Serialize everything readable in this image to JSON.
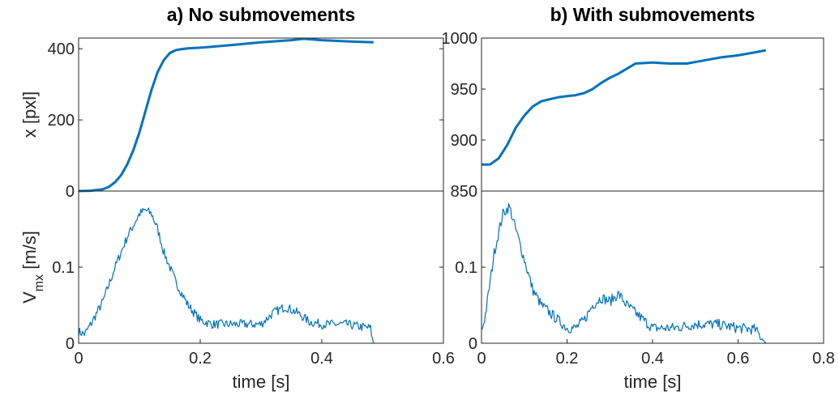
{
  "chart_data": [
    {
      "type": "line",
      "title": "a) No submovements",
      "xlabel": "",
      "ylabel": "x [pxl]",
      "xlim": [
        0,
        0.6
      ],
      "ylim": [
        0,
        430
      ],
      "xticks": [],
      "yticks": [
        0,
        200,
        400
      ],
      "ytick_labels": [
        "0",
        "200",
        "400"
      ],
      "color": "#0072BD",
      "series": [
        {
          "x": [
            0,
            0.02,
            0.04,
            0.05,
            0.06,
            0.07,
            0.08,
            0.09,
            0.1,
            0.11,
            0.12,
            0.13,
            0.14,
            0.15,
            0.16,
            0.17,
            0.18,
            0.2,
            0.25,
            0.3,
            0.35,
            0.37,
            0.4,
            0.45,
            0.485
          ],
          "y": [
            0,
            1,
            5,
            12,
            25,
            45,
            75,
            115,
            165,
            225,
            285,
            335,
            368,
            388,
            396,
            399,
            401,
            403,
            410,
            418,
            424,
            428,
            424,
            420,
            418
          ]
        }
      ]
    },
    {
      "type": "line",
      "title": "b) With submovements",
      "xlabel": "",
      "ylabel": "",
      "xlim": [
        0,
        0.8
      ],
      "ylim": [
        850,
        1000
      ],
      "xticks": [],
      "yticks": [
        850,
        900,
        950,
        1000
      ],
      "ytick_labels": [
        "850",
        "900",
        "950",
        "1000"
      ],
      "color": "#0072BD",
      "series": [
        {
          "x": [
            0,
            0.02,
            0.04,
            0.06,
            0.08,
            0.1,
            0.12,
            0.14,
            0.16,
            0.18,
            0.2,
            0.22,
            0.24,
            0.26,
            0.28,
            0.3,
            0.32,
            0.34,
            0.36,
            0.4,
            0.44,
            0.48,
            0.52,
            0.56,
            0.6,
            0.64,
            0.665
          ],
          "y": [
            876,
            876,
            882,
            895,
            912,
            924,
            933,
            938,
            940,
            942,
            943,
            944,
            946,
            950,
            956,
            961,
            965,
            970,
            975,
            976,
            975,
            975,
            978,
            981,
            983,
            986,
            988
          ]
        }
      ]
    },
    {
      "type": "line",
      "title": "",
      "xlabel": "time [s]",
      "ylabel": "V",
      "ylabel_sub": "mx",
      "ylabel_unit": " [m/s]",
      "xlim": [
        0,
        0.6
      ],
      "ylim": [
        0,
        0.2
      ],
      "xticks": [
        0,
        0.2,
        0.4,
        0.6
      ],
      "xtick_labels": [
        "0",
        "0.2",
        "0.4",
        "0.6"
      ],
      "yticks": [
        0,
        0.1
      ],
      "ytick_labels": [
        "0",
        "0.1"
      ],
      "color": "#0072BD",
      "series": [
        {
          "x": [
            0,
            0.01,
            0.02,
            0.04,
            0.06,
            0.08,
            0.1,
            0.11,
            0.12,
            0.13,
            0.14,
            0.16,
            0.18,
            0.2,
            0.22,
            0.25,
            0.28,
            0.3,
            0.32,
            0.34,
            0.36,
            0.38,
            0.4,
            0.42,
            0.44,
            0.46,
            0.48,
            0.485
          ],
          "y": [
            0.015,
            0.012,
            0.025,
            0.055,
            0.1,
            0.14,
            0.17,
            0.175,
            0.17,
            0.15,
            0.12,
            0.08,
            0.05,
            0.03,
            0.025,
            0.025,
            0.025,
            0.025,
            0.04,
            0.048,
            0.04,
            0.028,
            0.025,
            0.025,
            0.025,
            0.022,
            0.02,
            0
          ]
        }
      ]
    },
    {
      "type": "line",
      "title": "",
      "xlabel": "time [s]",
      "ylabel": "",
      "xlim": [
        0,
        0.8
      ],
      "ylim": [
        0,
        0.2
      ],
      "xticks": [
        0,
        0.2,
        0.4,
        0.6,
        0.8
      ],
      "xtick_labels": [
        "0",
        "0.2",
        "0.4",
        "0.6",
        "0.8"
      ],
      "yticks": [
        0,
        0.1
      ],
      "ytick_labels": [
        "0",
        "0.1"
      ],
      "color": "#0072BD",
      "series": [
        {
          "x": [
            0,
            0.01,
            0.03,
            0.05,
            0.065,
            0.08,
            0.1,
            0.12,
            0.14,
            0.16,
            0.18,
            0.2,
            0.22,
            0.24,
            0.26,
            0.28,
            0.3,
            0.32,
            0.34,
            0.36,
            0.38,
            0.4,
            0.45,
            0.5,
            0.55,
            0.6,
            0.64,
            0.665
          ],
          "y": [
            0.015,
            0.04,
            0.12,
            0.17,
            0.18,
            0.15,
            0.11,
            0.07,
            0.05,
            0.04,
            0.03,
            0.02,
            0.02,
            0.03,
            0.05,
            0.06,
            0.055,
            0.065,
            0.05,
            0.04,
            0.03,
            0.02,
            0.02,
            0.025,
            0.025,
            0.02,
            0.018,
            0
          ]
        }
      ]
    }
  ]
}
